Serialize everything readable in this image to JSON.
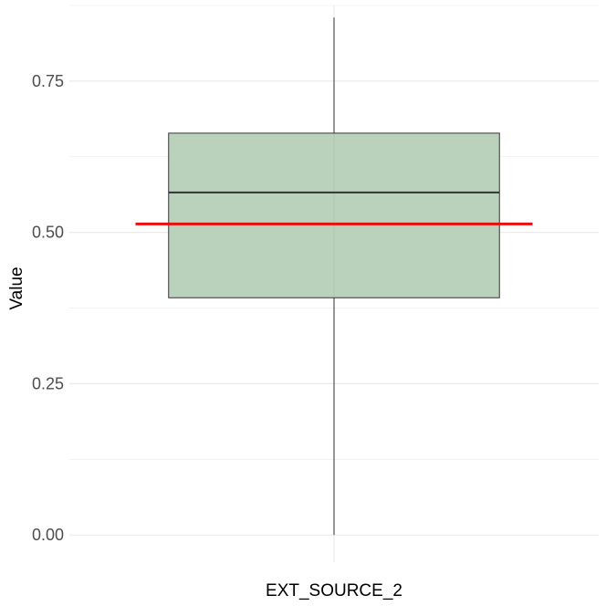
{
  "chart_data": {
    "type": "boxplot",
    "title": "",
    "xlabel": "",
    "ylabel": "Value",
    "ylim": [
      -0.045,
      0.875
    ],
    "grid": true,
    "y_ticks": [
      {
        "value": 0.0,
        "label": "0.00"
      },
      {
        "value": 0.25,
        "label": "0.25"
      },
      {
        "value": 0.5,
        "label": "0.50"
      },
      {
        "value": 0.75,
        "label": "0.75"
      }
    ],
    "y_minor_grid": [
      0.125,
      0.375,
      0.625,
      0.875
    ],
    "categories": [
      "EXT_SOURCE_2"
    ],
    "boxes": [
      {
        "category": "EXT_SOURCE_2",
        "min": 0.0,
        "q1": 0.392,
        "median": 0.566,
        "q3": 0.664,
        "max": 0.855,
        "mean": 0.514
      }
    ],
    "colors": {
      "box_fill": "#b6d0b8",
      "box_stroke": "#333333",
      "median": "#333333",
      "whisker": "#333333",
      "mean_line": "#e8100e",
      "grid": "#ebebeb"
    }
  }
}
